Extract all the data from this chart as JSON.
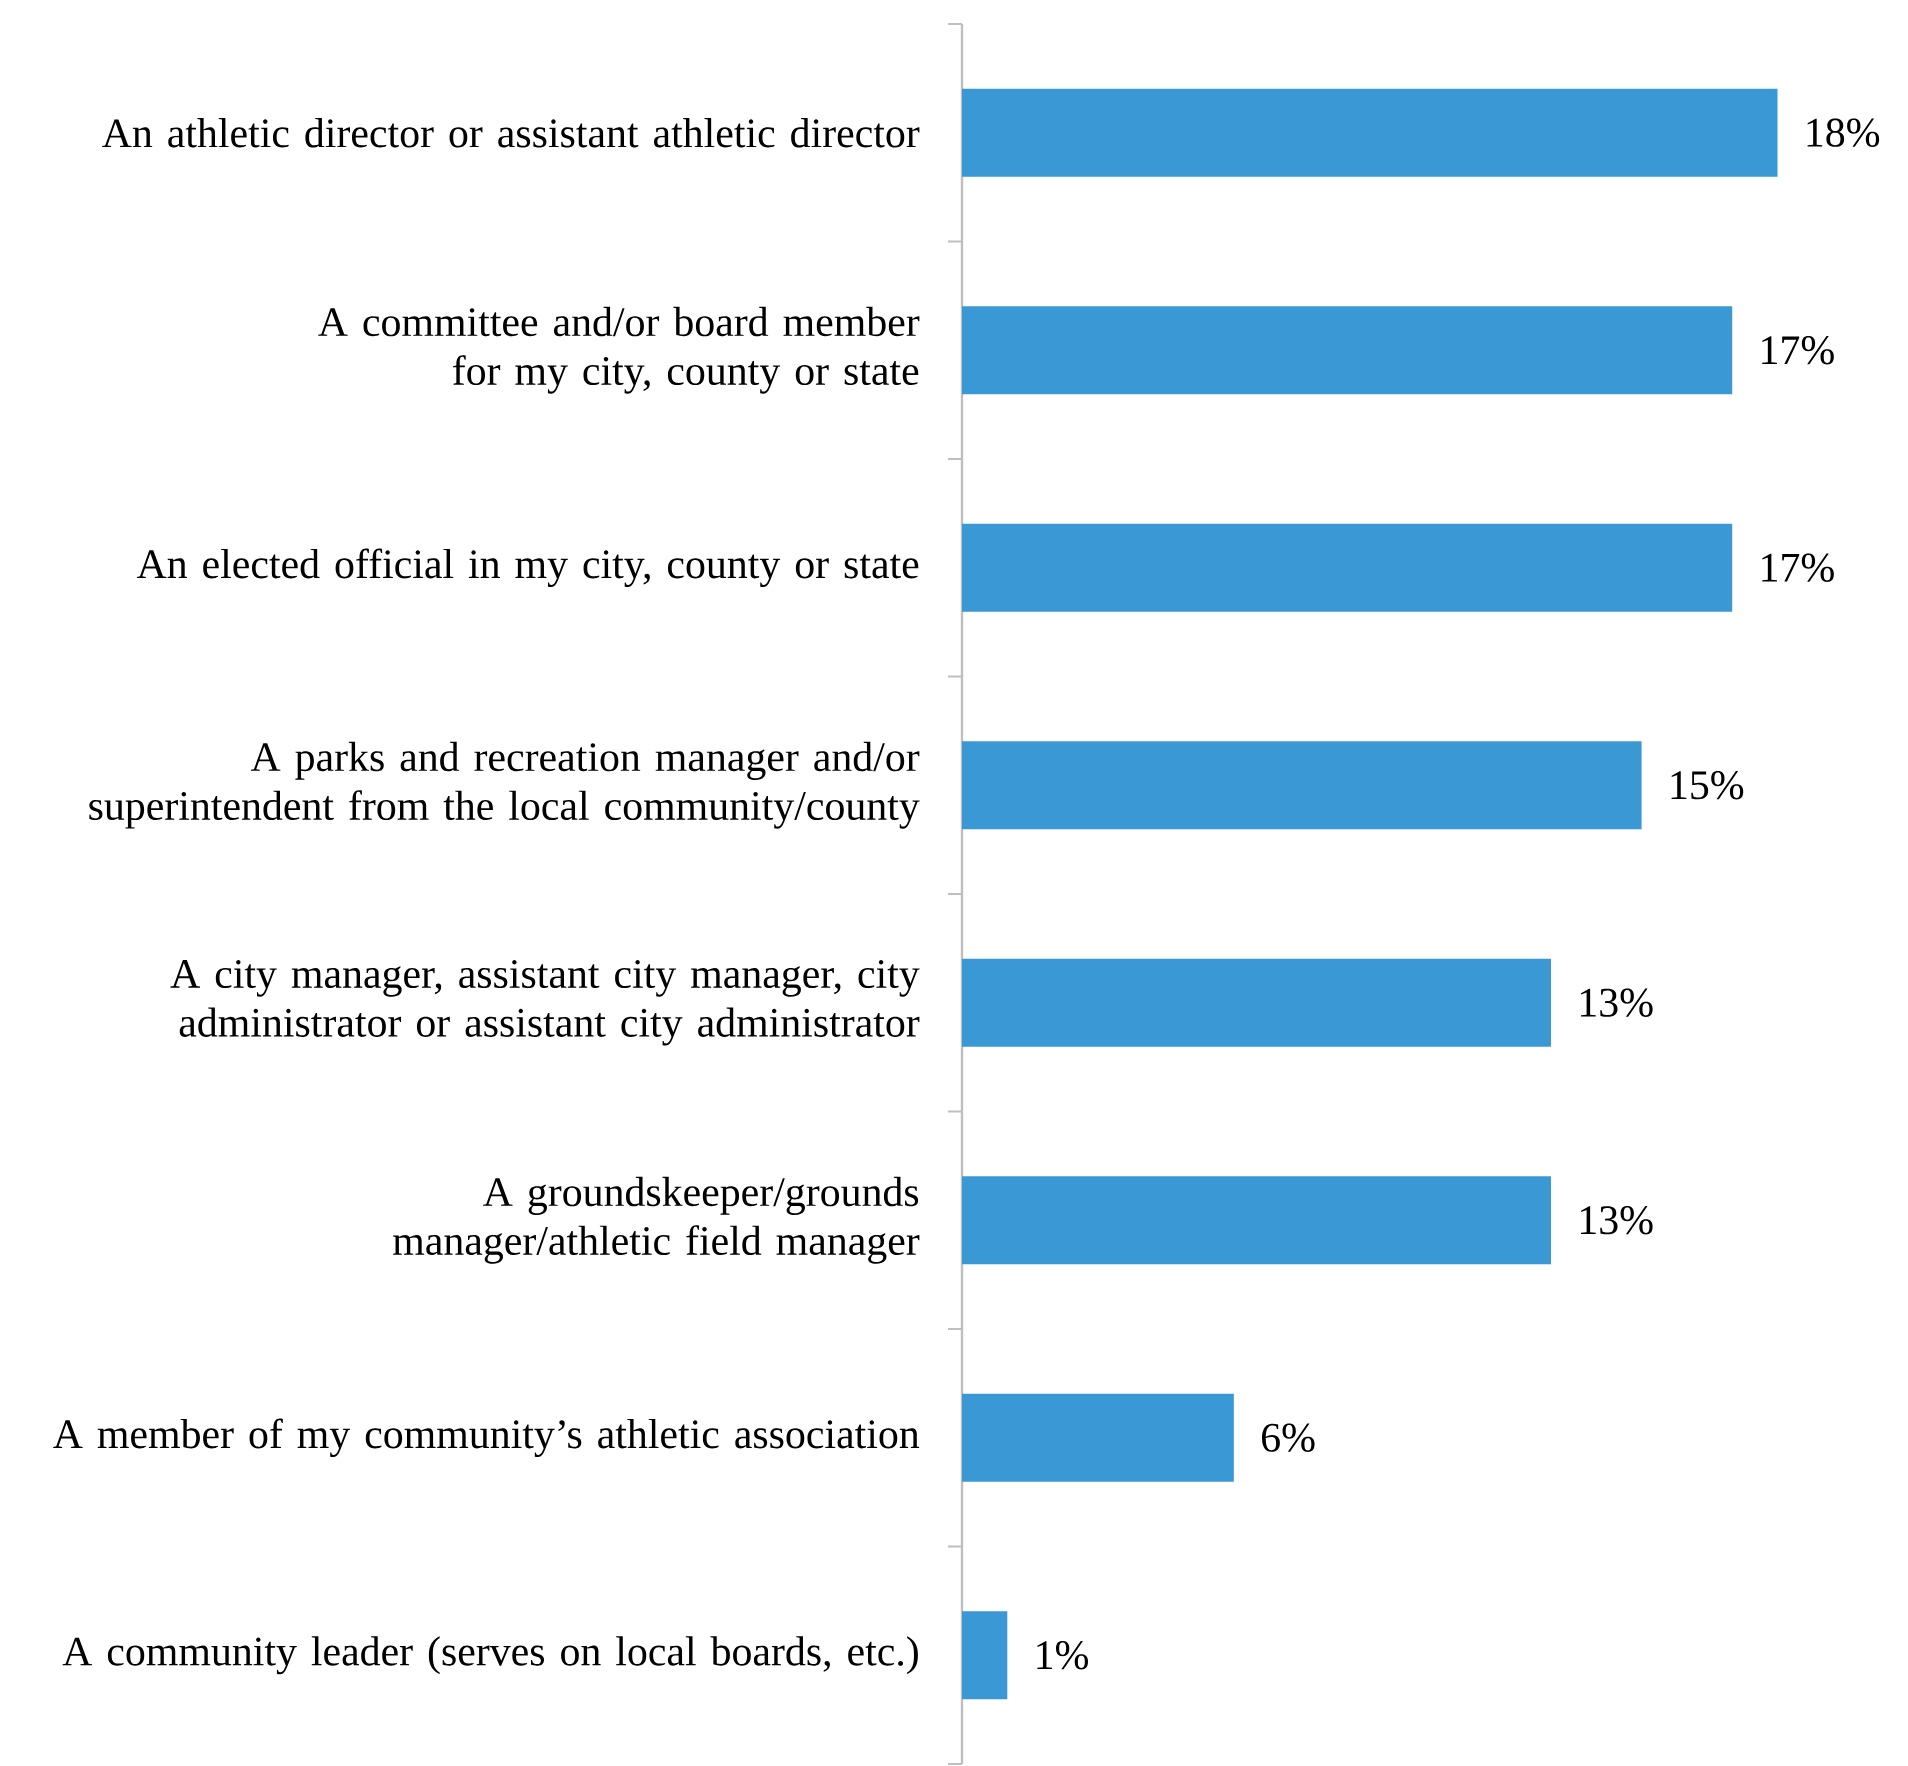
{
  "chart_data": {
    "type": "bar",
    "orientation": "horizontal",
    "categories": [
      "An athletic director or assistant athletic director",
      "A committee and/or board member for my city, county or state",
      "An elected official in my city, county or state",
      "A parks and recreation manager and/or superintendent from the local community/county",
      "A city manager, assistant city manager, city administrator or assistant city administrator",
      "A groundskeeper/grounds manager/athletic field manager",
      "A member of my community’s athletic association",
      "A community leader (serves on local boards, etc.)"
    ],
    "values": [
      18,
      17,
      17,
      15,
      13,
      13,
      6,
      1
    ],
    "value_labels": [
      "18%",
      "17%",
      "17%",
      "15%",
      "13%",
      "13%",
      "6%",
      "1%"
    ],
    "color": "#3a99d4"
  }
}
